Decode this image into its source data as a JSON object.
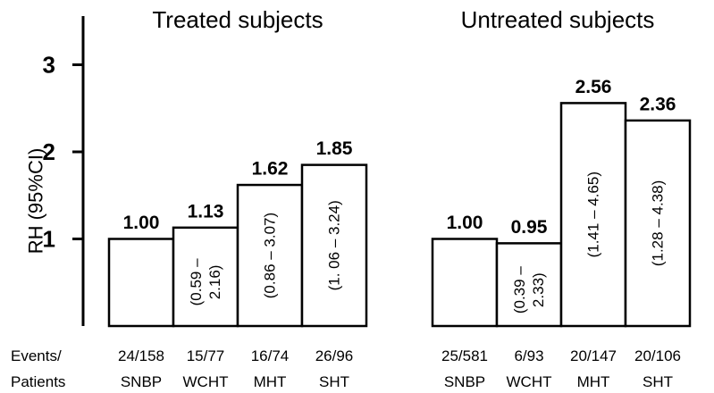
{
  "chart_data": {
    "type": "bar",
    "ylabel": "RH (95%CI)",
    "ylim": [
      0,
      3.5
    ],
    "yticks": [
      1,
      2,
      3
    ],
    "row_labels": [
      "Events/",
      "Patients"
    ],
    "panels": [
      {
        "title": "Treated subjects",
        "categories": [
          "SNBP",
          "WCHT",
          "MHT",
          "SHT"
        ],
        "events_patients": [
          "24/158",
          "15/77",
          "16/74",
          "26/96"
        ],
        "values": [
          1.0,
          1.13,
          1.62,
          1.85
        ],
        "value_labels": [
          "1.00",
          "1.13",
          "1.62",
          "1.85"
        ],
        "ci_labels": [
          [],
          [
            "(0.59 –",
            "2.16)"
          ],
          [
            "(0.86 – 3.07)"
          ],
          [
            "(1. 06 – 3.24)"
          ]
        ]
      },
      {
        "title": "Untreated subjects",
        "categories": [
          "SNBP",
          "WCHT",
          "MHT",
          "SHT"
        ],
        "events_patients": [
          "25/581",
          "6/93",
          "20/147",
          "20/106"
        ],
        "values": [
          1.0,
          0.95,
          2.56,
          2.36
        ],
        "value_labels": [
          "1.00",
          "0.95",
          "2.56",
          "2.36"
        ],
        "ci_labels": [
          [],
          [
            "(0.39 –",
            "2.33)"
          ],
          [
            "(1.41 – 4.65)"
          ],
          [
            "(1.28 – 4.38)"
          ]
        ]
      }
    ]
  }
}
